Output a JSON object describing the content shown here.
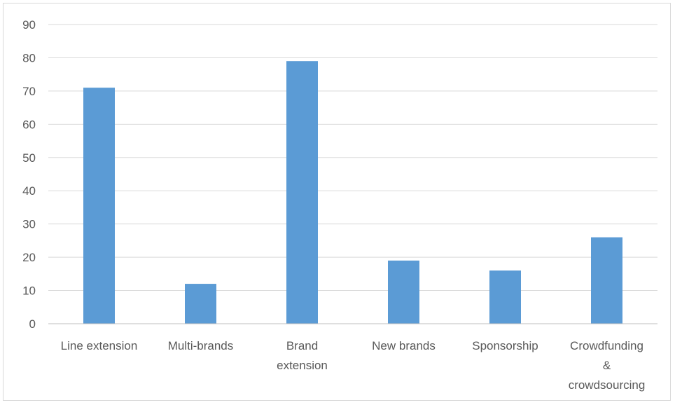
{
  "chart_data": {
    "type": "bar",
    "title": "",
    "xlabel": "",
    "ylabel": "",
    "categories": [
      "Line extension",
      "Multi-brands",
      "Brand extension",
      "New brands",
      "Sponsorship",
      "Crowdfunding & crowdsourcing"
    ],
    "category_label_lines": [
      [
        "Line extension"
      ],
      [
        "Multi-brands"
      ],
      [
        "Brand",
        "extension"
      ],
      [
        "New brands"
      ],
      [
        "Sponsorship"
      ],
      [
        "Crowdfunding",
        "&",
        "crowdsourcing"
      ]
    ],
    "values": [
      71,
      12,
      79,
      19,
      16,
      26
    ],
    "ylim": [
      0,
      90
    ],
    "yticks": [
      0,
      10,
      20,
      30,
      40,
      50,
      60,
      70,
      80,
      90
    ],
    "grid": true,
    "legend": "none",
    "colors": {
      "bar": "#5b9bd5",
      "grid": "#d9d9d9",
      "axis": "#bfbfbf",
      "text": "#595959"
    }
  }
}
